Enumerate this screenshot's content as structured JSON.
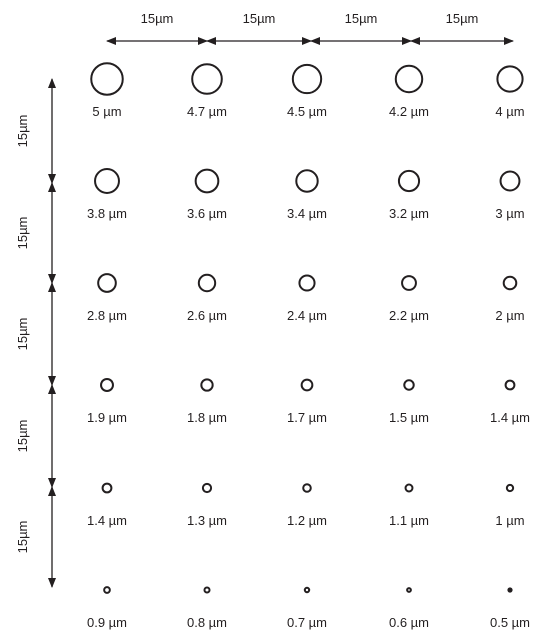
{
  "spacing": {
    "horizontal_labels": [
      "15µm",
      "15µm",
      "15µm",
      "15µm"
    ],
    "vertical_labels": [
      "15µm",
      "15µm",
      "15µm",
      "15µm",
      "15µm"
    ]
  },
  "holes": [
    [
      {
        "diameter_um": 5,
        "label": "5 µm"
      },
      {
        "diameter_um": 4.7,
        "label": "4.7 µm"
      },
      {
        "diameter_um": 4.5,
        "label": "4.5 µm"
      },
      {
        "diameter_um": 4.2,
        "label": "4.2 µm"
      },
      {
        "diameter_um": 4,
        "label": "4 µm"
      }
    ],
    [
      {
        "diameter_um": 3.8,
        "label": "3.8 µm"
      },
      {
        "diameter_um": 3.6,
        "label": "3.6 µm"
      },
      {
        "diameter_um": 3.4,
        "label": "3.4 µm"
      },
      {
        "diameter_um": 3.2,
        "label": "3.2 µm"
      },
      {
        "diameter_um": 3,
        "label": "3 µm"
      }
    ],
    [
      {
        "diameter_um": 2.8,
        "label": "2.8 µm"
      },
      {
        "diameter_um": 2.6,
        "label": "2.6 µm"
      },
      {
        "diameter_um": 2.4,
        "label": "2.4 µm"
      },
      {
        "diameter_um": 2.2,
        "label": "2.2 µm"
      },
      {
        "diameter_um": 2,
        "label": "2 µm"
      }
    ],
    [
      {
        "diameter_um": 1.9,
        "label": "1.9 µm"
      },
      {
        "diameter_um": 1.8,
        "label": "1.8 µm"
      },
      {
        "diameter_um": 1.7,
        "label": "1.7 µm"
      },
      {
        "diameter_um": 1.5,
        "label": "1.5 µm"
      },
      {
        "diameter_um": 1.4,
        "label": "1.4 µm"
      }
    ],
    [
      {
        "diameter_um": 1.4,
        "label": "1.4 µm"
      },
      {
        "diameter_um": 1.3,
        "label": "1.3 µm"
      },
      {
        "diameter_um": 1.2,
        "label": "1.2 µm"
      },
      {
        "diameter_um": 1.1,
        "label": "1.1 µm"
      },
      {
        "diameter_um": 1,
        "label": "1 µm"
      }
    ],
    [
      {
        "diameter_um": 0.9,
        "label": "0.9 µm"
      },
      {
        "diameter_um": 0.8,
        "label": "0.8 µm"
      },
      {
        "diameter_um": 0.7,
        "label": "0.7 µm"
      },
      {
        "diameter_um": 0.6,
        "label": "0.6 µm"
      },
      {
        "diameter_um": 0.5,
        "label": "0.5 µm"
      }
    ]
  ],
  "colors": {
    "ink": "#231f20",
    "background": "#ffffff"
  }
}
